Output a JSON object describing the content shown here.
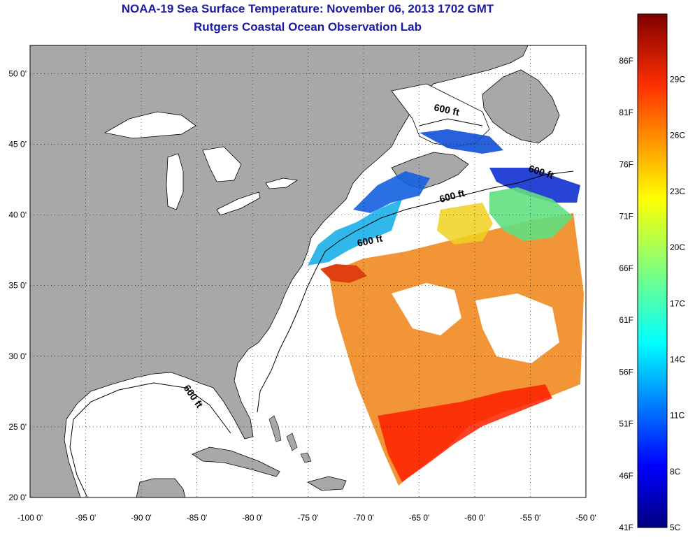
{
  "title": "NOAA-19 Sea Surface Temperature:  November 06, 2013 1702 GMT",
  "subtitle": "Rutgers Coastal Ocean Observation Lab",
  "map": {
    "lon_range": [
      -100,
      -50
    ],
    "lat_range": [
      20,
      52
    ],
    "lon_ticks": [
      "-100 0'",
      "-95 0'",
      "-90 0'",
      "-85 0'",
      "-80 0'",
      "-75 0'",
      "-70 0'",
      "-65 0'",
      "-60 0'",
      "-55 0'",
      "-50 0'"
    ],
    "lat_ticks": [
      "20 0'",
      "25 0'",
      "30 0'",
      "35 0'",
      "40 0'",
      "45 0'",
      "50 0'"
    ],
    "contour_label": "600 ft",
    "grid": "dotted",
    "colors": {
      "land": "#a8a8a8",
      "ocean": "#ffffff",
      "coast": "#000000"
    }
  },
  "colorbar": {
    "fahrenheit": [
      "41F",
      "46F",
      "51F",
      "56F",
      "61F",
      "66F",
      "71F",
      "76F",
      "81F",
      "86F"
    ],
    "celsius": [
      "5C",
      "8C",
      "11C",
      "14C",
      "17C",
      "20C",
      "23C",
      "26C",
      "29C"
    ],
    "colors": [
      "#00007f",
      "#0000ff",
      "#007fff",
      "#00ffff",
      "#7fff7f",
      "#ffff00",
      "#ff7f00",
      "#ff0000",
      "#7f0000"
    ]
  }
}
